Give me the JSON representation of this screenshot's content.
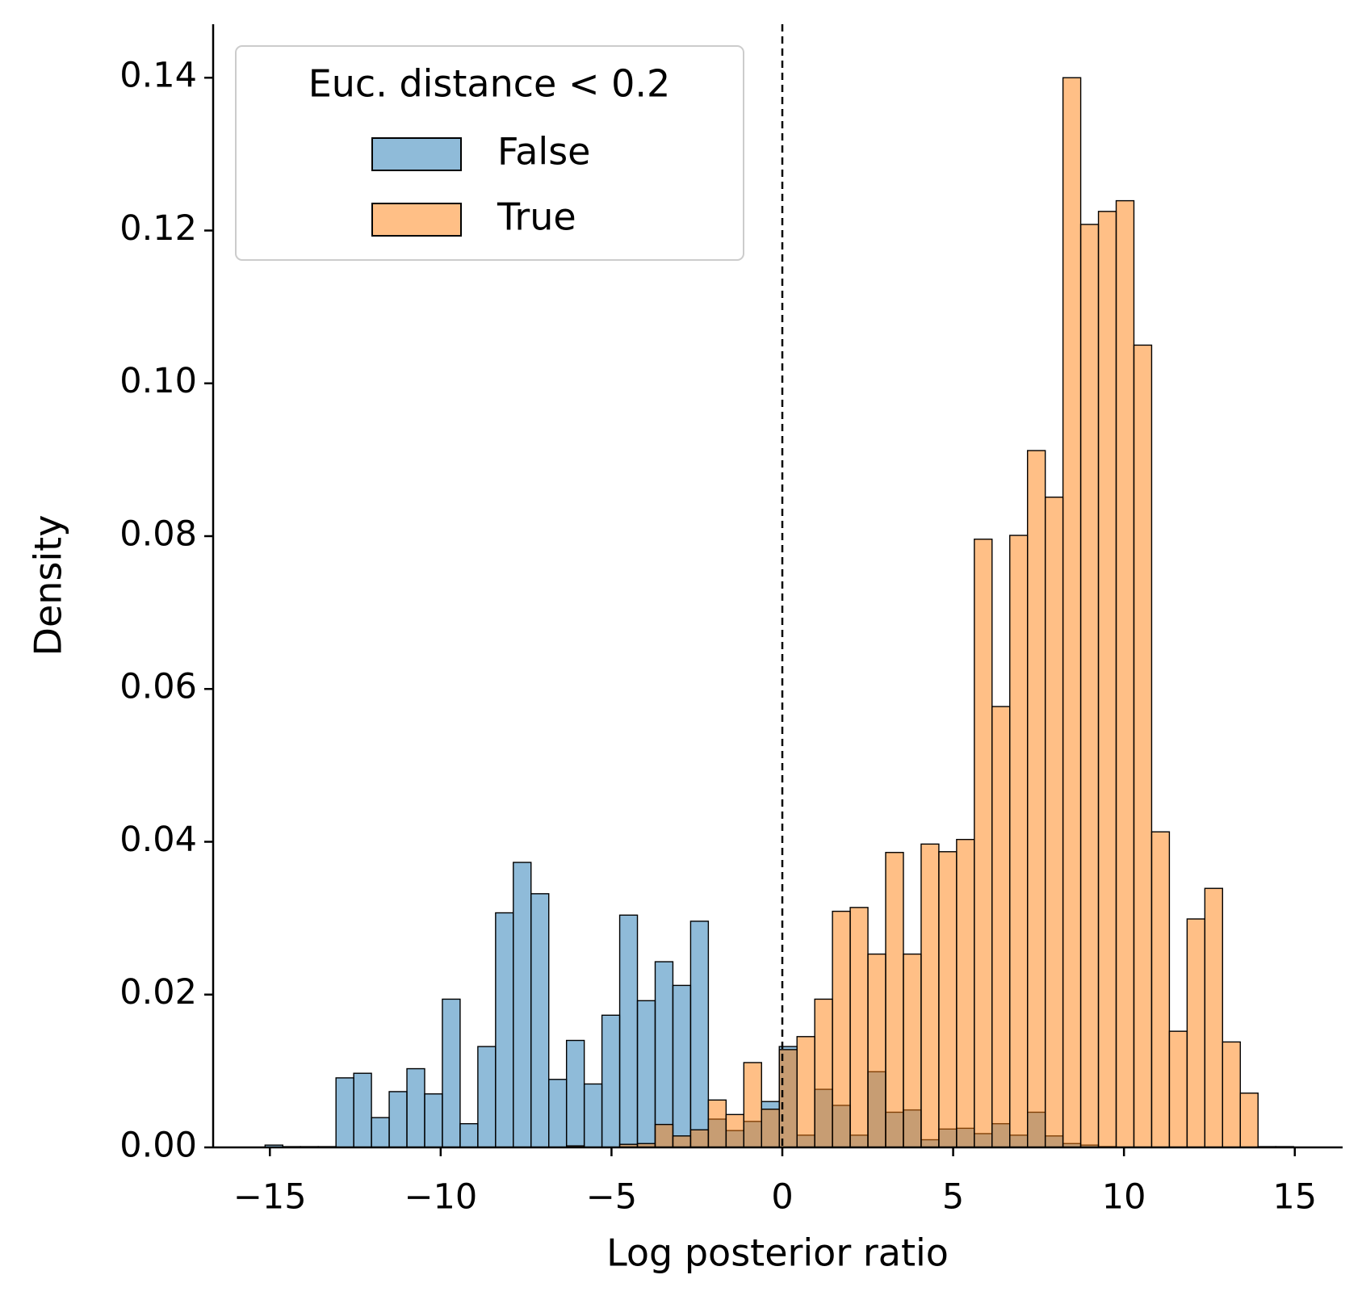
{
  "chart_data": {
    "type": "histogram",
    "xlabel": "Log posterior ratio",
    "ylabel": "Density",
    "bins": [
      -15.14,
      -14.621,
      -14.102,
      -13.583,
      -13.064,
      -12.545,
      -12.026,
      -11.507,
      -10.988,
      -10.469,
      -9.95,
      -9.431,
      -8.912,
      -8.393,
      -7.874,
      -7.355,
      -6.836,
      -6.317,
      -5.798,
      -5.279,
      -4.76,
      -4.241,
      -3.722,
      -3.203,
      -2.684,
      -2.165,
      -1.646,
      -1.127,
      -0.608,
      -0.089,
      0.43,
      0.949,
      1.468,
      1.987,
      2.506,
      3.025,
      3.544,
      4.063,
      4.582,
      5.101,
      5.62,
      6.139,
      6.658,
      7.177,
      7.696,
      8.215,
      8.734,
      9.253,
      9.772,
      10.291,
      10.81,
      11.329,
      11.848,
      12.367,
      12.886,
      13.405,
      13.924,
      14.443,
      14.962
    ],
    "series": [
      {
        "name": "False",
        "color": "#1f77b4",
        "values": [
          0.0003,
          0.0001,
          0.0001,
          0.0001,
          0.0091,
          0.0097,
          0.0039,
          0.0073,
          0.0103,
          0.007,
          0.0194,
          0.0031,
          0.0132,
          0.0307,
          0.0373,
          0.0332,
          0.0089,
          0.014,
          0.0083,
          0.0173,
          0.0304,
          0.0192,
          0.0243,
          0.0212,
          0.0296,
          0.0037,
          0.0022,
          0.0034,
          0.006,
          0.0132,
          0.0016,
          0.0076,
          0.0055,
          0.0016,
          0.0099,
          0.0046,
          0.0049,
          0.001,
          0.0024,
          0.0025,
          0.0018,
          0.0031,
          0.0016,
          0.0046,
          0.0015,
          0.0005,
          0.0003,
          0.0001,
          0,
          0,
          0,
          0,
          0,
          0,
          0,
          0,
          0,
          0
        ]
      },
      {
        "name": "True",
        "color": "#ff7f0e",
        "values": [
          0,
          0,
          0,
          0,
          0,
          0,
          0,
          0,
          0,
          0,
          0,
          0,
          0,
          0,
          0,
          0,
          0,
          0.0002,
          0,
          0,
          0.0004,
          0.0005,
          0.003,
          0.0015,
          0.0023,
          0.0062,
          0.0043,
          0.0111,
          0.005,
          0.0128,
          0.0145,
          0.0194,
          0.0309,
          0.0314,
          0.0253,
          0.0386,
          0.0253,
          0.0397,
          0.0387,
          0.0403,
          0.0796,
          0.0577,
          0.0801,
          0.0912,
          0.0851,
          0.14,
          0.1208,
          0.1225,
          0.1239,
          0.105,
          0.0413,
          0.0152,
          0.0299,
          0.0339,
          0.0138,
          0.0071,
          0.0001,
          0.0001
        ]
      }
    ],
    "alpha": 0.5,
    "legend_title": "Euc. distance < 0.2",
    "legend": "upper left",
    "vlines": [
      0
    ],
    "xlim": [
      -16.66,
      16.4
    ],
    "ylim": [
      0,
      0.147
    ],
    "xticks": [
      {
        "value": -15,
        "label": "−15"
      },
      {
        "value": -10,
        "label": "−10"
      },
      {
        "value": -5,
        "label": "−5"
      },
      0,
      5,
      10,
      15
    ],
    "yticks": [
      {
        "value": 0,
        "label": "0.00"
      },
      {
        "value": 0.02,
        "label": "0.02"
      },
      {
        "value": 0.04,
        "label": "0.04"
      },
      {
        "value": 0.06,
        "label": "0.06"
      },
      {
        "value": 0.08,
        "label": "0.08"
      },
      {
        "value": 0.1,
        "label": "0.10"
      },
      {
        "value": 0.12,
        "label": "0.12"
      },
      {
        "value": 0.14,
        "label": "0.14"
      }
    ]
  }
}
